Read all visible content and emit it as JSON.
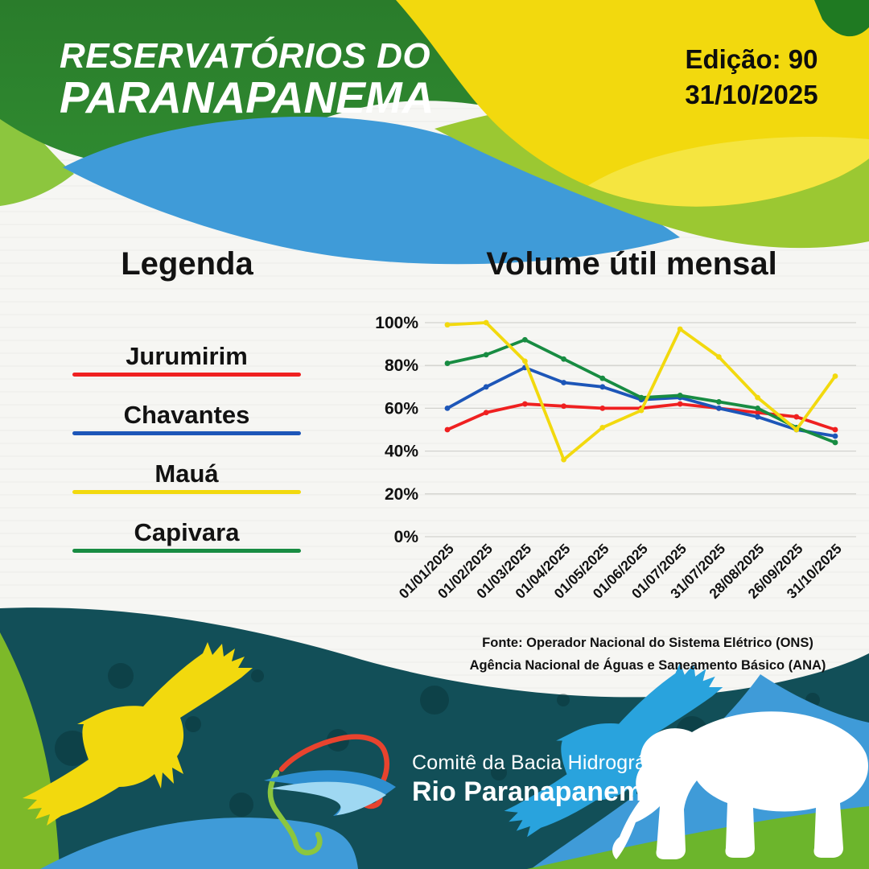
{
  "header": {
    "title_line1": "RESERVATÓRIOS DO",
    "title_line2": "PARANAPANEMA",
    "edition_label": "Edição: 90",
    "edition_date": "31/10/2025"
  },
  "legend": {
    "title": "Legenda",
    "items": [
      {
        "label": "Jurumirim",
        "color": "#ef2020"
      },
      {
        "label": "Chavantes",
        "color": "#1d56b8"
      },
      {
        "label": "Mauá",
        "color": "#f2d90e"
      },
      {
        "label": "Capivara",
        "color": "#188c42"
      }
    ]
  },
  "chart_data": {
    "type": "line",
    "title": "Volume útil mensal",
    "categories": [
      "01/01/2025",
      "01/02/2025",
      "01/03/2025",
      "01/04/2025",
      "01/05/2025",
      "01/06/2025",
      "01/07/2025",
      "31/07/2025",
      "28/08/2025",
      "26/09/2025",
      "31/10/2025"
    ],
    "series": [
      {
        "name": "Jurumirim",
        "color": "#ef2020",
        "values": [
          50,
          58,
          62,
          61,
          60,
          60,
          62,
          60,
          58,
          56,
          50
        ]
      },
      {
        "name": "Chavantes",
        "color": "#1d56b8",
        "values": [
          60,
          70,
          79,
          72,
          70,
          64,
          65,
          60,
          56,
          50,
          47
        ]
      },
      {
        "name": "Mauá",
        "color": "#f2d90e",
        "values": [
          99,
          100,
          82,
          36,
          51,
          59,
          97,
          84,
          65,
          50,
          75
        ]
      },
      {
        "name": "Capivara",
        "color": "#188c42",
        "values": [
          81,
          85,
          92,
          83,
          74,
          65,
          66,
          63,
          60,
          51,
          44
        ]
      }
    ],
    "xlabel": "",
    "ylabel": "",
    "ylim": [
      0,
      100
    ],
    "yticks": [
      "0%",
      "20%",
      "40%",
      "60%",
      "80%",
      "100%"
    ],
    "grid": true,
    "legend_position": "separate-left-panel"
  },
  "source": {
    "line1": "Fonte: Operador Nacional do Sistema Elétrico (ONS)",
    "line2": "Agência Nacional de Águas e Saneamento Básico (ANA)"
  },
  "footer": {
    "org_line1": "Comitê da Bacia Hidrográfica",
    "org_line2": "Rio Paranapanema"
  },
  "icons": {
    "left_bird": "yellow-bird-silhouette",
    "right_bird": "blue-bird-silhouette",
    "animal": "capybara-silhouette",
    "logo": "river-basin-map-logo"
  },
  "colors": {
    "brand_dark_green": "#2e7d2f",
    "lime_green": "#8cc63e",
    "sky_blue": "#3f9bd8",
    "brand_yellow": "#f2d90e",
    "dark_teal": "#124f58",
    "content_bg": "#f6f6f3",
    "text_dark": "#121212",
    "text_light": "#ffffff"
  }
}
